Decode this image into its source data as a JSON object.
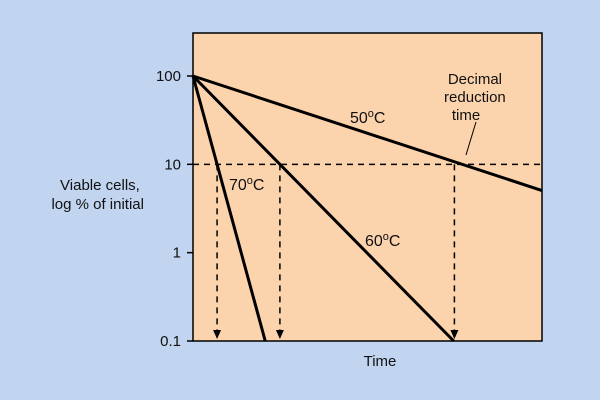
{
  "chart_data": {
    "type": "line",
    "title": "",
    "xlabel": "Time",
    "ylabel_lines": [
      "Viable cells,",
      "log % of initial"
    ],
    "y_scale": "log",
    "ylim": [
      0.1,
      100
    ],
    "y_ticks": [
      {
        "value": 100,
        "label": "100"
      },
      {
        "value": 10,
        "label": "10"
      },
      {
        "value": 1,
        "label": "1"
      },
      {
        "value": 0.1,
        "label": "0.1"
      }
    ],
    "xlim": [
      0,
      1
    ],
    "series": [
      {
        "name": "70",
        "x": [
          0,
          0.207
        ],
        "y": [
          100,
          0.1
        ]
      },
      {
        "name": "60",
        "x": [
          0,
          0.747
        ],
        "y": [
          100,
          0.1
        ]
      },
      {
        "name": "50",
        "x": [
          0,
          1
        ],
        "y": [
          100,
          5.05
        ]
      }
    ],
    "reference_line": {
      "y": 10,
      "style": "dashed"
    },
    "drop_lines": [
      {
        "x": 0.069,
        "from_y": 10,
        "to_y": 0.1
      },
      {
        "x": 0.249,
        "from_y": 10,
        "to_y": 0.1
      },
      {
        "x": 0.749,
        "from_y": 10,
        "to_y": 0.1
      }
    ],
    "annotation_lines": [
      "Decimal",
      "reduction",
      "time"
    ],
    "degree_mark": "o",
    "unit": "C",
    "colors": {
      "background": "#c2d5f0",
      "plot_background": "#fbd3ac",
      "line": "#000000"
    }
  }
}
